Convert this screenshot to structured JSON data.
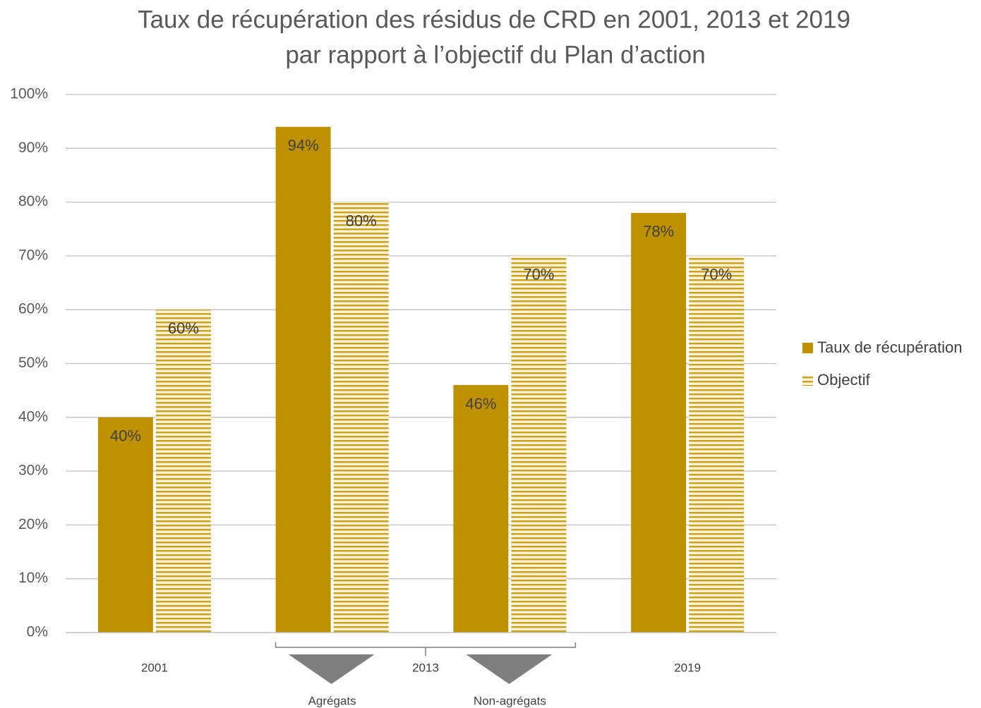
{
  "chart_data": {
    "type": "bar",
    "title": [
      "Taux de récupération des résidus de CRD en 2001, 2013 et 2019",
      "par rapport à l’objectif du Plan d’action"
    ],
    "categories": [
      "2001",
      "Agrégats",
      "Non-agrégats",
      "2019"
    ],
    "category_group": {
      "label": "2013",
      "members": [
        1,
        2
      ]
    },
    "series": [
      {
        "name": "Taux de récupération",
        "color": "#bf9000",
        "pattern": "solid",
        "values": [
          40,
          94,
          46,
          78
        ],
        "value_labels": [
          "40%",
          "94%",
          "46%",
          "78%"
        ]
      },
      {
        "name": "Objectif",
        "color": "#bf9000",
        "pattern": "horizontal-stripes",
        "values": [
          60,
          80,
          70,
          70
        ],
        "value_labels": [
          "60%",
          "80%",
          "70%",
          "70%"
        ]
      }
    ],
    "ylim": [
      0,
      100
    ],
    "yticks": [
      {
        "value": 0,
        "label": "0%"
      },
      {
        "value": 10,
        "label": "10%"
      },
      {
        "value": 20,
        "label": "20%"
      },
      {
        "value": 30,
        "label": "30%"
      },
      {
        "value": 40,
        "label": "40%"
      },
      {
        "value": 50,
        "label": "50%"
      },
      {
        "value": 60,
        "label": "60%"
      },
      {
        "value": 70,
        "label": "70%"
      },
      {
        "value": 80,
        "label": "80%"
      },
      {
        "value": 90,
        "label": "90%"
      },
      {
        "value": 100,
        "label": "100%"
      }
    ],
    "grid": true,
    "legend": "right"
  }
}
